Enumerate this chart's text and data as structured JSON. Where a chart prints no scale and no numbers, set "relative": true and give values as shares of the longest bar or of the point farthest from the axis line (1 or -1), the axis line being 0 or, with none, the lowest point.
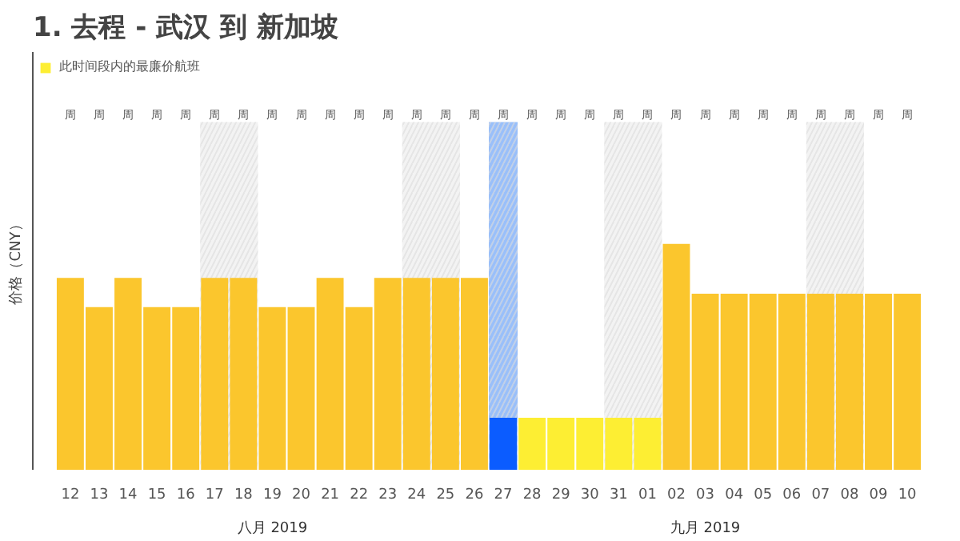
{
  "chart_data": {
    "type": "bar",
    "title": "1. 去程 - 武汉 到 新加坡",
    "ylabel": "价格（CNY）",
    "relative": true,
    "legend": "top left",
    "grid": false,
    "categories": [
      "12",
      "13",
      "14",
      "15",
      "16",
      "17",
      "18",
      "19",
      "20",
      "21",
      "22",
      "23",
      "24",
      "25",
      "26",
      "27",
      "28",
      "29",
      "30",
      "31",
      "01",
      "02",
      "03",
      "04",
      "05",
      "06",
      "07",
      "08",
      "09",
      "10"
    ],
    "series": [
      {
        "colors": [
          "#fbc62d",
          "#fbc62d",
          "#fbc62d",
          "#fbc62d",
          "#fbc62d",
          "#fbc62d",
          "#fbc62d",
          "#fbc62d",
          "#fbc62d",
          "#fbc62d",
          "#fbc62d",
          "#fbc62d",
          "#fbc62d",
          "#fbc62d",
          "#fbc62d",
          "#0b5cff",
          null,
          null,
          null,
          null,
          null,
          "#fbc62d",
          "#fbc62d",
          "#fbc62d",
          "#fbc62d",
          "#fbc62d",
          "#fbc62d",
          "#fbc62d",
          "#fbc62d",
          "#fbc62d"
        ],
        "values": [
          0.85,
          0.72,
          0.85,
          0.72,
          0.72,
          0.85,
          0.85,
          0.72,
          0.72,
          0.85,
          0.72,
          0.85,
          0.85,
          0.85,
          0.85,
          0.23,
          null,
          null,
          null,
          null,
          null,
          1,
          0.78,
          0.78,
          0.78,
          0.78,
          0.78,
          0.78,
          0.78,
          0.78
        ]
      },
      {
        "name": "此时间段内的最廉价航班",
        "color": "#fdee33",
        "values": [
          null,
          null,
          null,
          null,
          null,
          null,
          null,
          null,
          null,
          null,
          null,
          null,
          null,
          null,
          null,
          null,
          0.23,
          0.23,
          0.23,
          0.23,
          0.23,
          null,
          null,
          null,
          null,
          null,
          null,
          null,
          null,
          null
        ]
      }
    ],
    "bands": [
      {
        "axis": "x",
        "from": "17",
        "to": "18",
        "color": "#f3f3f3"
      },
      {
        "axis": "x",
        "from": "24",
        "to": "25",
        "color": "#f3f3f3"
      },
      {
        "axis": "x",
        "from": "31",
        "to": "01",
        "color": "#f3f3f3"
      },
      {
        "axis": "x",
        "from": "07",
        "to": "08",
        "color": "#f3f3f3"
      },
      {
        "axis": "x",
        "from": "27",
        "to": "27",
        "color": "#99bffa"
      }
    ],
    "annotations": [
      "周",
      "周",
      "周",
      "周",
      "周",
      "周",
      "周",
      "周",
      "周",
      "周",
      "周",
      "周",
      "周",
      "周",
      "周",
      "周",
      "周",
      "周",
      "周",
      "周",
      "周",
      "周",
      "周",
      "周",
      "周",
      "周",
      "周",
      "周",
      "周",
      "周",
      "八月 2019",
      "九月 2019"
    ]
  }
}
